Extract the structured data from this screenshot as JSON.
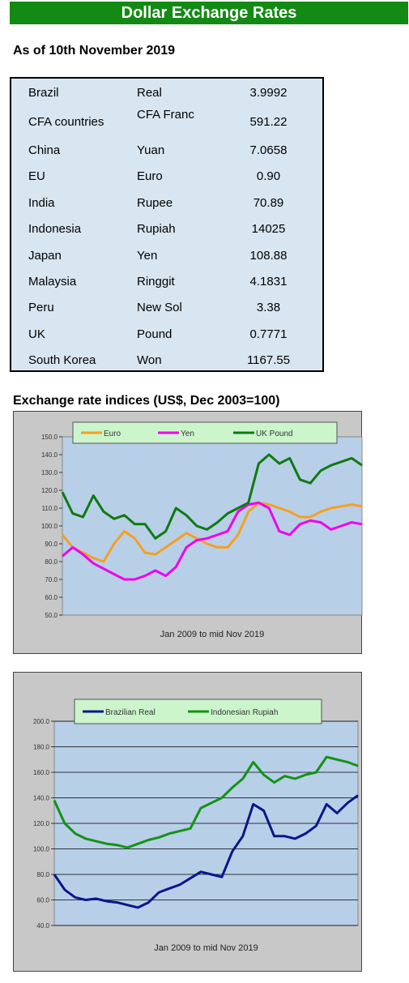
{
  "header": {
    "title": "Dollar Exchange Rates"
  },
  "as_of": "As of 10th November 2019",
  "rates": [
    {
      "country": "Brazil",
      "currency": "Real",
      "value": "3.9992"
    },
    {
      "country": "CFA countries",
      "currency": "CFA Franc",
      "value": "591.22"
    },
    {
      "country": "China",
      "currency": "Yuan",
      "value": "7.0658"
    },
    {
      "country": "EU",
      "currency": "Euro",
      "value": "0.90"
    },
    {
      "country": "India",
      "currency": "Rupee",
      "value": "70.89"
    },
    {
      "country": "Indonesia",
      "currency": "Rupiah",
      "value": "14025"
    },
    {
      "country": "Japan",
      "currency": "Yen",
      "value": "108.88"
    },
    {
      "country": "Malaysia",
      "currency": "Ringgit",
      "value": "4.1831"
    },
    {
      "country": "Peru",
      "currency": "New Sol",
      "value": "3.38"
    },
    {
      "country": "UK",
      "currency": "Pound",
      "value": "0.7771"
    },
    {
      "country": "South Korea",
      "currency": "Won",
      "value": "1167.55"
    }
  ],
  "indices_heading": "Exchange rate indices (US$, Dec 2003=100)",
  "chart_data": [
    {
      "type": "line",
      "xlabel": "Jan 2009  to mid Nov 2019",
      "ylim": [
        50,
        150
      ],
      "yticks": [
        "150.0",
        "140.0",
        "130.0",
        "120.0",
        "110.0",
        "100.0",
        "90.0",
        "80.0",
        "70.0",
        "60.0",
        "50.0"
      ],
      "x_range": [
        "Jan 2009",
        "mid Nov 2019"
      ],
      "legend_position": "top",
      "grid": false,
      "plot_color": "#b8cfe8",
      "series": [
        {
          "name": "Euro",
          "color": "#f5a020",
          "values": [
            95,
            88,
            85,
            82,
            80,
            90,
            97,
            93,
            85,
            84,
            88,
            92,
            96,
            93,
            90,
            88,
            88,
            95,
            108,
            113,
            112,
            110,
            108,
            105,
            105,
            108,
            110,
            111,
            112,
            111
          ]
        },
        {
          "name": "Yen",
          "color": "#ee00ee",
          "values": [
            83,
            88,
            84,
            79,
            76,
            73,
            70,
            70,
            72,
            75,
            72,
            77,
            88,
            92,
            93,
            95,
            97,
            108,
            112,
            113,
            110,
            97,
            95,
            101,
            103,
            102,
            98,
            100,
            102,
            101
          ]
        },
        {
          "name": "UK Pound",
          "color": "#0e7a10",
          "values": [
            119,
            107,
            105,
            117,
            108,
            104,
            106,
            101,
            101,
            93,
            97,
            110,
            106,
            100,
            98,
            102,
            107,
            110,
            113,
            135,
            140,
            135,
            138,
            126,
            124,
            131,
            134,
            136,
            138,
            134
          ]
        }
      ]
    },
    {
      "type": "line",
      "xlabel": "Jan 2009  to mid Nov 2019",
      "ylim": [
        40,
        200
      ],
      "yticks": [
        "200.0",
        "180.0",
        "160.0",
        "140.0",
        "120.0",
        "100.0",
        "80.0",
        "60.0",
        "40.0"
      ],
      "x_range": [
        "Jan 2009",
        "mid Nov 2019"
      ],
      "legend_position": "top",
      "grid": true,
      "plot_color": "#b8cfe8",
      "series": [
        {
          "name": "Brazilian Real",
          "color": "#0a168a",
          "values": [
            80,
            68,
            62,
            60,
            61,
            59,
            58,
            56,
            54,
            58,
            66,
            69,
            72,
            77,
            82,
            80,
            78,
            98,
            110,
            135,
            130,
            110,
            110,
            108,
            112,
            118,
            135,
            128,
            136,
            142
          ]
        },
        {
          "name": "Indonesian Rupiah",
          "color": "#129312",
          "values": [
            138,
            120,
            112,
            108,
            106,
            104,
            103,
            101,
            104,
            107,
            109,
            112,
            114,
            116,
            132,
            136,
            140,
            148,
            155,
            168,
            158,
            152,
            157,
            155,
            158,
            160,
            172,
            170,
            168,
            165
          ]
        }
      ]
    }
  ]
}
